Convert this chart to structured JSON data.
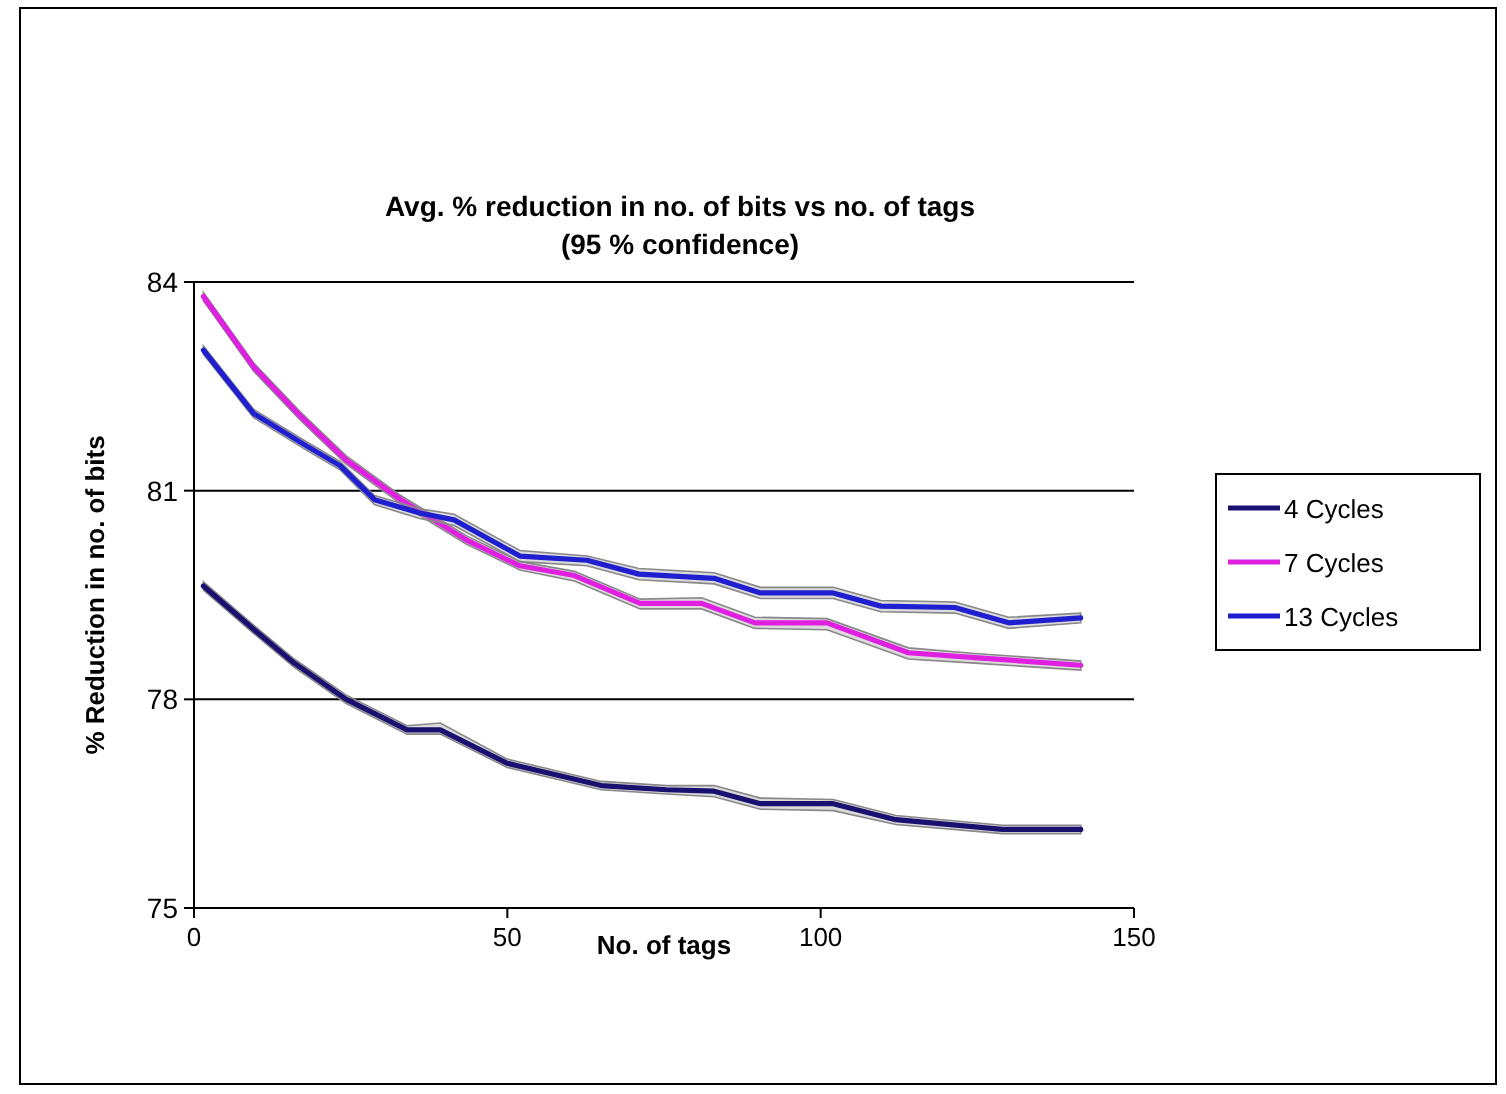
{
  "chart_data": {
    "type": "line",
    "title": "Avg. % reduction in no. of bits vs no. of tags",
    "subtitle": "(95 % confidence)",
    "xlabel": "No. of tags",
    "ylabel": "% Reduction in no. of bits",
    "xlim": [
      0,
      150
    ],
    "ylim": [
      75,
      84
    ],
    "xticks": [
      0,
      50,
      100,
      150
    ],
    "yticks": [
      75,
      78,
      81,
      84
    ],
    "grid": "y",
    "legend": "right",
    "marker": "none",
    "line_style": "solid",
    "series": [
      {
        "name": "4 Cycles",
        "color": "#1a1070",
        "x": [
          1.5,
          9.6,
          16,
          24.3,
          34,
          39.3,
          50,
          65,
          75.4,
          83,
          90.4,
          102,
          112,
          129,
          141.5
        ],
        "values": [
          79.63,
          79.0,
          78.52,
          78.0,
          77.56,
          77.56,
          77.08,
          76.76,
          76.7,
          76.68,
          76.5,
          76.5,
          76.27,
          76.13,
          76.13
        ],
        "lower": [
          79.57,
          78.94,
          78.46,
          77.94,
          77.5,
          77.5,
          77.02,
          76.7,
          76.64,
          76.6,
          76.42,
          76.4,
          76.2,
          76.07,
          76.07
        ],
        "upper": [
          79.69,
          79.06,
          78.58,
          78.06,
          77.62,
          77.66,
          77.14,
          76.82,
          76.76,
          76.76,
          76.58,
          76.56,
          76.33,
          76.19,
          76.19
        ]
      },
      {
        "name": "7 Cycles",
        "color": "#e020e0",
        "x": [
          1.5,
          9.5,
          17,
          24.3,
          33,
          43.5,
          52,
          60.7,
          71.2,
          81,
          89.5,
          101,
          114,
          124.6,
          141.5
        ],
        "values": [
          83.79,
          82.78,
          82.07,
          81.44,
          80.87,
          80.29,
          79.92,
          79.78,
          79.38,
          79.38,
          79.1,
          79.1,
          78.67,
          78.6,
          78.49
        ],
        "lower": [
          83.73,
          82.72,
          82.01,
          81.38,
          80.81,
          80.23,
          79.86,
          79.7,
          79.3,
          79.3,
          79.02,
          79.0,
          78.58,
          78.52,
          78.42
        ],
        "upper": [
          83.85,
          82.84,
          82.13,
          81.5,
          80.93,
          80.35,
          79.98,
          79.84,
          79.44,
          79.46,
          79.18,
          79.16,
          78.74,
          78.66,
          78.55
        ]
      },
      {
        "name": "13 Cycles",
        "color": "#1f1fd0",
        "x": [
          1.5,
          9.5,
          18,
          23.3,
          28.8,
          36,
          41.5,
          52,
          62.7,
          71,
          83,
          90.4,
          102,
          109.6,
          121.4,
          130,
          141.5
        ],
        "values": [
          83.02,
          82.11,
          81.64,
          81.36,
          80.87,
          80.68,
          80.58,
          80.06,
          80.0,
          79.8,
          79.74,
          79.53,
          79.53,
          79.34,
          79.32,
          79.1,
          79.17
        ],
        "lower": [
          82.96,
          82.05,
          81.58,
          81.3,
          80.8,
          80.6,
          80.5,
          79.98,
          79.92,
          79.72,
          79.66,
          79.45,
          79.45,
          79.26,
          79.24,
          79.02,
          79.1
        ],
        "upper": [
          83.08,
          82.17,
          81.7,
          81.42,
          80.93,
          80.74,
          80.66,
          80.14,
          80.06,
          79.88,
          79.82,
          79.61,
          79.61,
          79.42,
          79.4,
          79.18,
          79.24
        ]
      }
    ]
  }
}
